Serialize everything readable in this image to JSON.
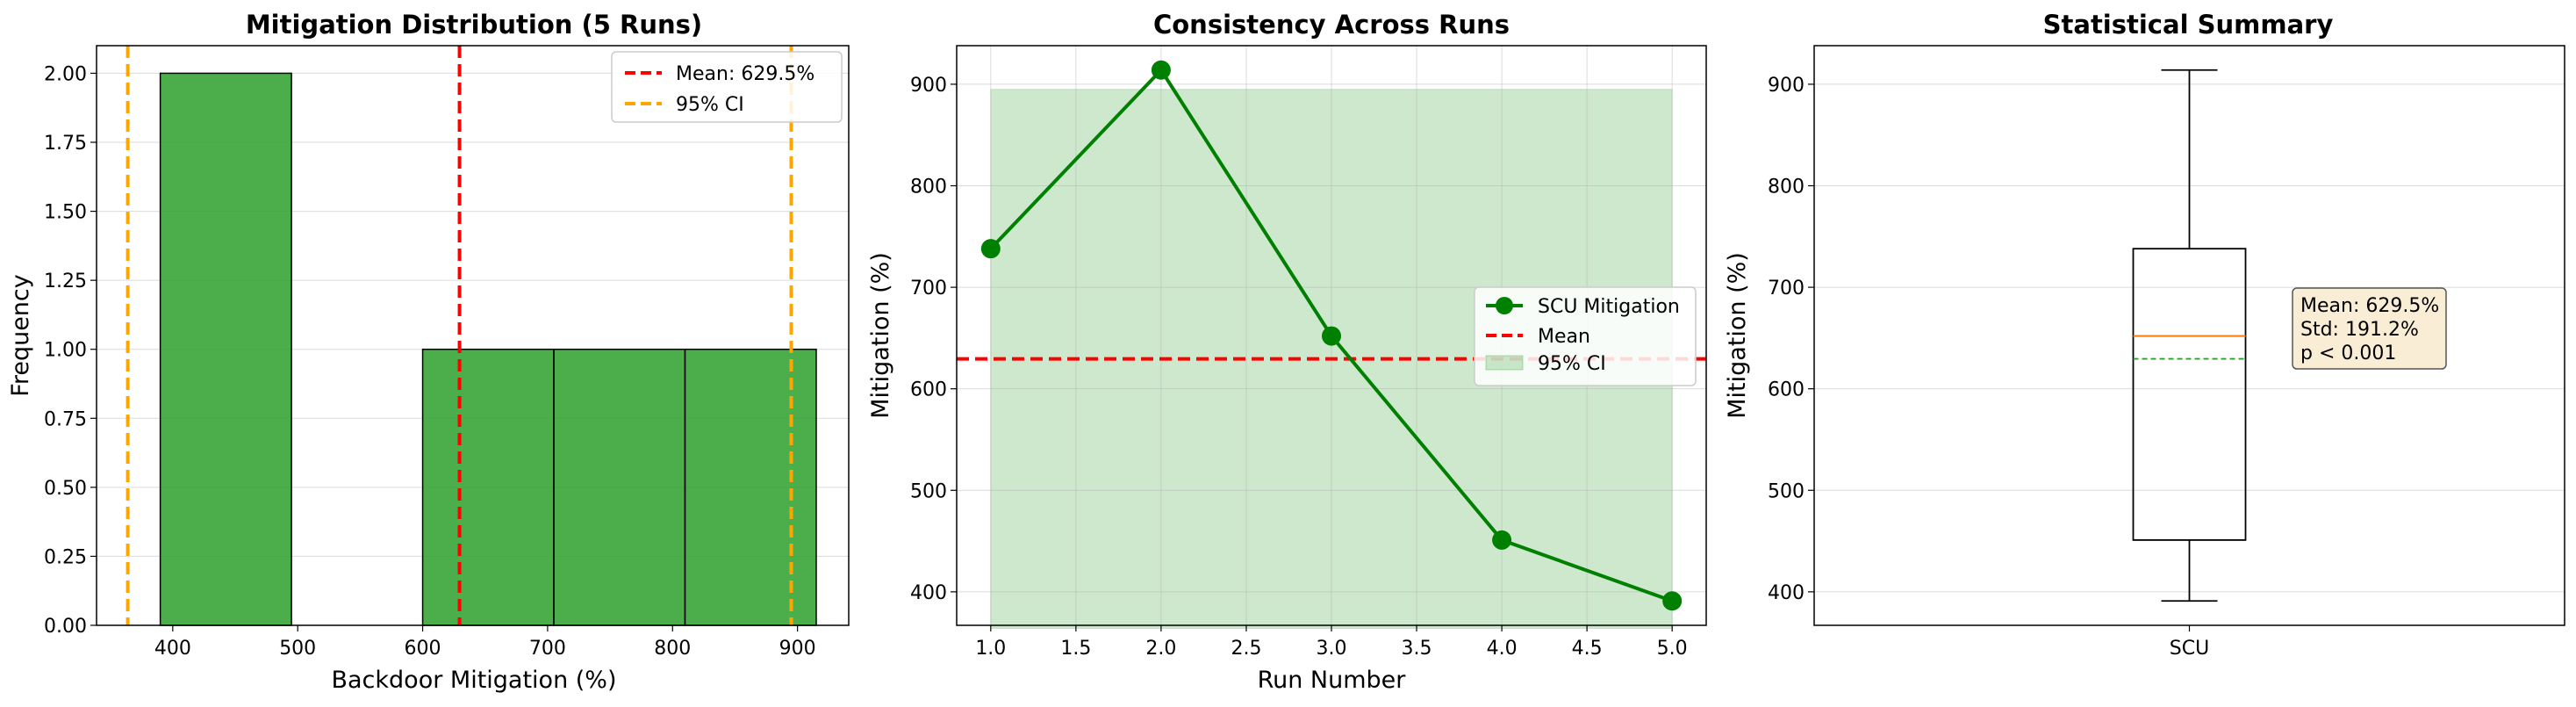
{
  "colors": {
    "green": "#2ca02c",
    "green_dark": "#008000",
    "red": "#ff0000",
    "orange": "#ffa500",
    "box_median": "#ff7f0e"
  },
  "chart_data": [
    {
      "type": "histogram",
      "title": "Mitigation Distribution (5 Runs)",
      "xlabel": "Backdoor Mitigation (%)",
      "ylabel": "Frequency",
      "xlim": [
        339,
        941
      ],
      "ylim": [
        0,
        2.1
      ],
      "x_ticks": [
        400,
        500,
        600,
        700,
        800,
        900
      ],
      "y_ticks": [
        0,
        0.25,
        0.5,
        0.75,
        1.0,
        1.25,
        1.5,
        1.75,
        2.0
      ],
      "y_tick_labels": [
        "0.00",
        "0.25",
        "0.50",
        "0.75",
        "1.00",
        "1.25",
        "1.50",
        "1.75",
        "2.00"
      ],
      "bins": [
        {
          "x0": 390,
          "x1": 495,
          "count": 2
        },
        {
          "x0": 495,
          "x1": 600,
          "count": 0
        },
        {
          "x0": 600,
          "x1": 705,
          "count": 1
        },
        {
          "x0": 705,
          "x1": 810,
          "count": 1
        },
        {
          "x0": 810,
          "x1": 915,
          "count": 1
        }
      ],
      "mean": 629.5,
      "ci": [
        364,
        895
      ],
      "legend": [
        "Mean: 629.5%",
        "95% CI"
      ],
      "legend_position": "top-right",
      "grid": true
    },
    {
      "type": "line",
      "title": "Consistency Across Runs",
      "xlabel": "Run Number",
      "ylabel": "Mitigation (%)",
      "xlim": [
        0.8,
        5.2
      ],
      "ylim": [
        367,
        938
      ],
      "x_ticks": [
        1.0,
        1.5,
        2.0,
        2.5,
        3.0,
        3.5,
        4.0,
        4.5,
        5.0
      ],
      "x_tick_labels": [
        "1.0",
        "1.5",
        "2.0",
        "2.5",
        "3.0",
        "3.5",
        "4.0",
        "4.5",
        "5.0"
      ],
      "y_ticks": [
        400,
        500,
        600,
        700,
        800,
        900
      ],
      "x": [
        1,
        2,
        3,
        4,
        5
      ],
      "y": [
        738,
        914,
        652,
        451,
        391
      ],
      "mean": 629.5,
      "ci": [
        364,
        895
      ],
      "legend": [
        "SCU Mitigation",
        "Mean",
        "95% CI"
      ],
      "legend_position": "center-right",
      "grid": true
    },
    {
      "type": "box",
      "title": "Statistical Summary",
      "ylabel": "Mitigation (%)",
      "category": "SCU",
      "ylim": [
        367,
        938
      ],
      "y_ticks": [
        400,
        500,
        600,
        700,
        800,
        900
      ],
      "min": 391,
      "q1": 451,
      "median": 652,
      "q3": 738,
      "max": 914,
      "mean": 629.5,
      "stats_text": [
        "Mean: 629.5%",
        "Std: 191.2%",
        "p < 0.001"
      ],
      "grid": true
    }
  ]
}
